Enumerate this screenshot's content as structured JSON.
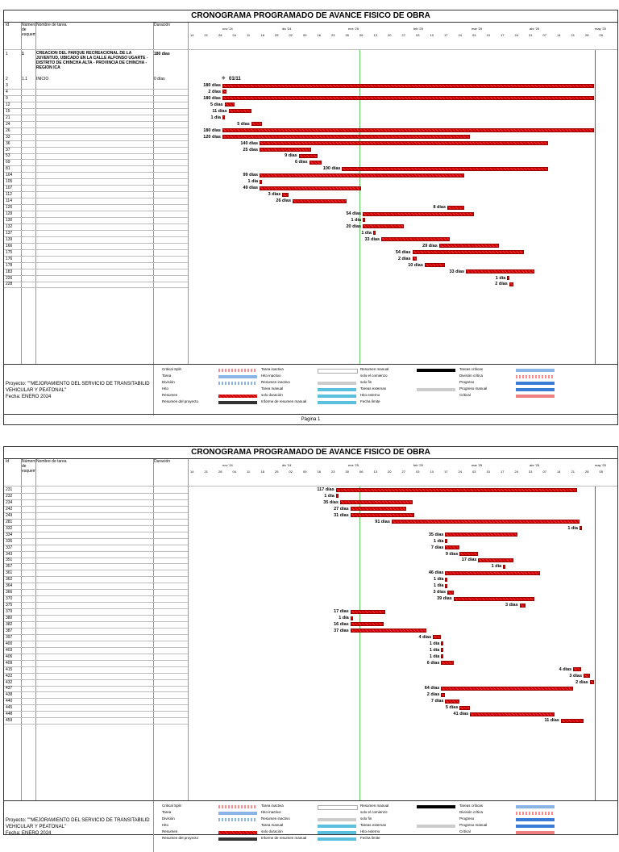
{
  "title": "CRONOGRAMA PROGRAMADO DE AVANCE FISICO DE OBRA",
  "columns": {
    "id": "Id",
    "wbs": "Número de esquema",
    "name": "Nombre de tarea",
    "duration": "Duración"
  },
  "timescale": {
    "months": [
      "nov '24",
      "dic '24",
      "ene '25",
      "feb '25",
      "mar '25",
      "abr '25",
      "may '25"
    ],
    "days": [
      "14",
      "21",
      "28",
      "04",
      "11",
      "18",
      "25",
      "02",
      "09",
      "16",
      "23",
      "30",
      "06",
      "13",
      "20",
      "27",
      "03",
      "10",
      "17",
      "24",
      "03",
      "10",
      "17",
      "24",
      "31",
      "07",
      "14",
      "21",
      "28",
      "05"
    ]
  },
  "page1": {
    "summary": {
      "id": "1",
      "wbs": "1",
      "name": "CREACION DEL PARQUE RECREACIONAL DE LA JUVENTUD, UBICADO EN LA CALLE ALFONSO UGARTE - DISTRITO DE CHINCHA ALTA - PROVINCIA DE CHINCHA - REGION ICA",
      "duration": "180 días"
    },
    "milestone": {
      "id": "2",
      "wbs": "1.1",
      "name": "INICIO",
      "duration": "0 días",
      "label": "01/11"
    },
    "rows": [
      {
        "id": "3",
        "label": "180 días",
        "start": 0,
        "dur": 180
      },
      {
        "id": "4",
        "label": "2 días",
        "start": 0,
        "dur": 2
      },
      {
        "id": "9",
        "label": "180 días",
        "start": 0,
        "dur": 180
      },
      {
        "id": "12",
        "label": "5 días",
        "start": 1,
        "dur": 5
      },
      {
        "id": "15",
        "label": "11 días",
        "start": 3,
        "dur": 11
      },
      {
        "id": "21",
        "label": "1 día",
        "start": 0,
        "dur": 1
      },
      {
        "id": "24",
        "label": "5 días",
        "start": 14,
        "dur": 5
      },
      {
        "id": "26",
        "label": "180 días",
        "start": 0,
        "dur": 180
      },
      {
        "id": "33",
        "label": "120 días",
        "start": 0,
        "dur": 120
      },
      {
        "id": "36",
        "label": "140 días",
        "start": 18,
        "dur": 140
      },
      {
        "id": "37",
        "label": "25 días",
        "start": 18,
        "dur": 25
      },
      {
        "id": "53",
        "label": "9 días",
        "start": 37,
        "dur": 9
      },
      {
        "id": "69",
        "label": "6 días",
        "start": 42,
        "dur": 6
      },
      {
        "id": "81",
        "label": "100 días",
        "start": 58,
        "dur": 100
      },
      {
        "id": "104",
        "label": "99 días",
        "start": 18,
        "dur": 99
      },
      {
        "id": "105",
        "label": "1 día",
        "start": 18,
        "dur": 1
      },
      {
        "id": "107",
        "label": "49 días",
        "start": 18,
        "dur": 49
      },
      {
        "id": "112",
        "label": "3 días",
        "start": 29,
        "dur": 3
      },
      {
        "id": "114",
        "label": "26 días",
        "start": 34,
        "dur": 26
      },
      {
        "id": "126",
        "label": "8 días",
        "start": 109,
        "dur": 8
      },
      {
        "id": "129",
        "label": "54 días",
        "start": 68,
        "dur": 54
      },
      {
        "id": "130",
        "label": "1 día",
        "start": 68,
        "dur": 1
      },
      {
        "id": "132",
        "label": "20 días",
        "start": 68,
        "dur": 20
      },
      {
        "id": "137",
        "label": "1 día",
        "start": 73,
        "dur": 1
      },
      {
        "id": "139",
        "label": "33 días",
        "start": 77,
        "dur": 33
      },
      {
        "id": "166",
        "label": "29 días",
        "start": 105,
        "dur": 29
      },
      {
        "id": "175",
        "label": "54 días",
        "start": 92,
        "dur": 54
      },
      {
        "id": "176",
        "label": "2 días",
        "start": 92,
        "dur": 2
      },
      {
        "id": "178",
        "label": "10 días",
        "start": 98,
        "dur": 10
      },
      {
        "id": "183",
        "label": "33 días",
        "start": 118,
        "dur": 33
      },
      {
        "id": "226",
        "label": "1 día",
        "start": 138,
        "dur": 1
      },
      {
        "id": "228",
        "label": "2 días",
        "start": 139,
        "dur": 2
      }
    ]
  },
  "page2": {
    "rows": [
      {
        "id": "231",
        "label": "117 días",
        "start": 55,
        "dur": 117
      },
      {
        "id": "232",
        "label": "1 día",
        "start": 55,
        "dur": 1
      },
      {
        "id": "234",
        "label": "35 días",
        "start": 57,
        "dur": 35
      },
      {
        "id": "242",
        "label": "27 días",
        "start": 62,
        "dur": 27
      },
      {
        "id": "249",
        "label": "31 días",
        "start": 62,
        "dur": 31
      },
      {
        "id": "281",
        "label": "91 días",
        "start": 82,
        "dur": 91
      },
      {
        "id": "332",
        "label": "1 día",
        "start": 173,
        "dur": 1
      },
      {
        "id": "334",
        "label": "35 días",
        "start": 108,
        "dur": 35
      },
      {
        "id": "335",
        "label": "1 día",
        "start": 108,
        "dur": 1
      },
      {
        "id": "337",
        "label": "7 días",
        "start": 108,
        "dur": 7
      },
      {
        "id": "343",
        "label": "9 días",
        "start": 115,
        "dur": 9
      },
      {
        "id": "351",
        "label": "17 días",
        "start": 124,
        "dur": 17
      },
      {
        "id": "357",
        "label": "1 día",
        "start": 136,
        "dur": 1
      },
      {
        "id": "361",
        "label": "46 días",
        "start": 108,
        "dur": 46
      },
      {
        "id": "362",
        "label": "1 día",
        "start": 108,
        "dur": 1
      },
      {
        "id": "364",
        "label": "1 día",
        "start": 108,
        "dur": 1
      },
      {
        "id": "366",
        "label": "3 días",
        "start": 109,
        "dur": 3
      },
      {
        "id": "370",
        "label": "39 días",
        "start": 112,
        "dur": 39
      },
      {
        "id": "375",
        "label": "3 días",
        "start": 144,
        "dur": 3
      },
      {
        "id": "379",
        "label": "17 días",
        "start": 62,
        "dur": 17
      },
      {
        "id": "380",
        "label": "1 día",
        "start": 62,
        "dur": 1
      },
      {
        "id": "382",
        "label": "16 días",
        "start": 62,
        "dur": 16
      },
      {
        "id": "387",
        "label": "37 días",
        "start": 62,
        "dur": 37
      },
      {
        "id": "397",
        "label": "4 días",
        "start": 102,
        "dur": 4
      },
      {
        "id": "400",
        "label": "1 día",
        "start": 106,
        "dur": 1
      },
      {
        "id": "403",
        "label": "1 día",
        "start": 106,
        "dur": 1
      },
      {
        "id": "406",
        "label": "1 día",
        "start": 106,
        "dur": 1
      },
      {
        "id": "409",
        "label": "6 días",
        "start": 106,
        "dur": 6
      },
      {
        "id": "415",
        "label": "4 días",
        "start": 170,
        "dur": 4
      },
      {
        "id": "422",
        "label": "3 días",
        "start": 175,
        "dur": 3
      },
      {
        "id": "432",
        "label": "2 días",
        "start": 178,
        "dur": 2
      },
      {
        "id": "437",
        "label": "64 días",
        "start": 106,
        "dur": 64
      },
      {
        "id": "438",
        "label": "2 días",
        "start": 106,
        "dur": 2
      },
      {
        "id": "440",
        "label": "7 días",
        "start": 108,
        "dur": 7
      },
      {
        "id": "445",
        "label": "5 días",
        "start": 115,
        "dur": 5
      },
      {
        "id": "448",
        "label": "41 días",
        "start": 120,
        "dur": 41
      },
      {
        "id": "459",
        "label": "11 días",
        "start": 164,
        "dur": 11
      }
    ]
  },
  "legend": {
    "project_line1": "Proyecto: \"\"MEJORAMIENTO DEL SERVICIO DE TRANSITABILID",
    "project_line2": "VEHICULAR Y PEATONAL\"",
    "date": "Fecha: ENERO 2024",
    "col1": [
      "Critical Split",
      "Tarea",
      "División",
      "Hito",
      "Resumen",
      "Resumen del proyecto"
    ],
    "col2": [
      "Tarea inactiva",
      "Hito inactivo",
      "Resumen inactivo",
      "Tarea manual",
      "solo duración",
      "Informe de resumen manual"
    ],
    "col3": [
      "Resumen manual",
      "solo el comienzo",
      "solo fin",
      "Tareas externas",
      "Hito externo",
      "Fecha límite"
    ],
    "col4": [
      "Tareas críticas",
      "División crítica",
      "Progreso",
      "Progreso manual",
      "Critical"
    ]
  },
  "footer": "Página 1",
  "colors": {
    "critical": "#cc0000",
    "today_line": "#66cc66",
    "task": "#8ab4e6"
  }
}
